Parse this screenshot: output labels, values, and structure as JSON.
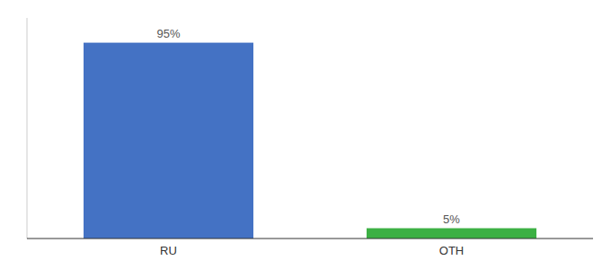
{
  "chart_data": {
    "type": "bar",
    "categories": [
      "RU",
      "OTH"
    ],
    "values": [
      95,
      5
    ],
    "value_labels": [
      "95%",
      "5%"
    ],
    "colors": [
      "#4472c4",
      "#3cb044"
    ],
    "ylim": [
      0,
      107
    ],
    "data_labels": true,
    "tick_labels": "x"
  }
}
